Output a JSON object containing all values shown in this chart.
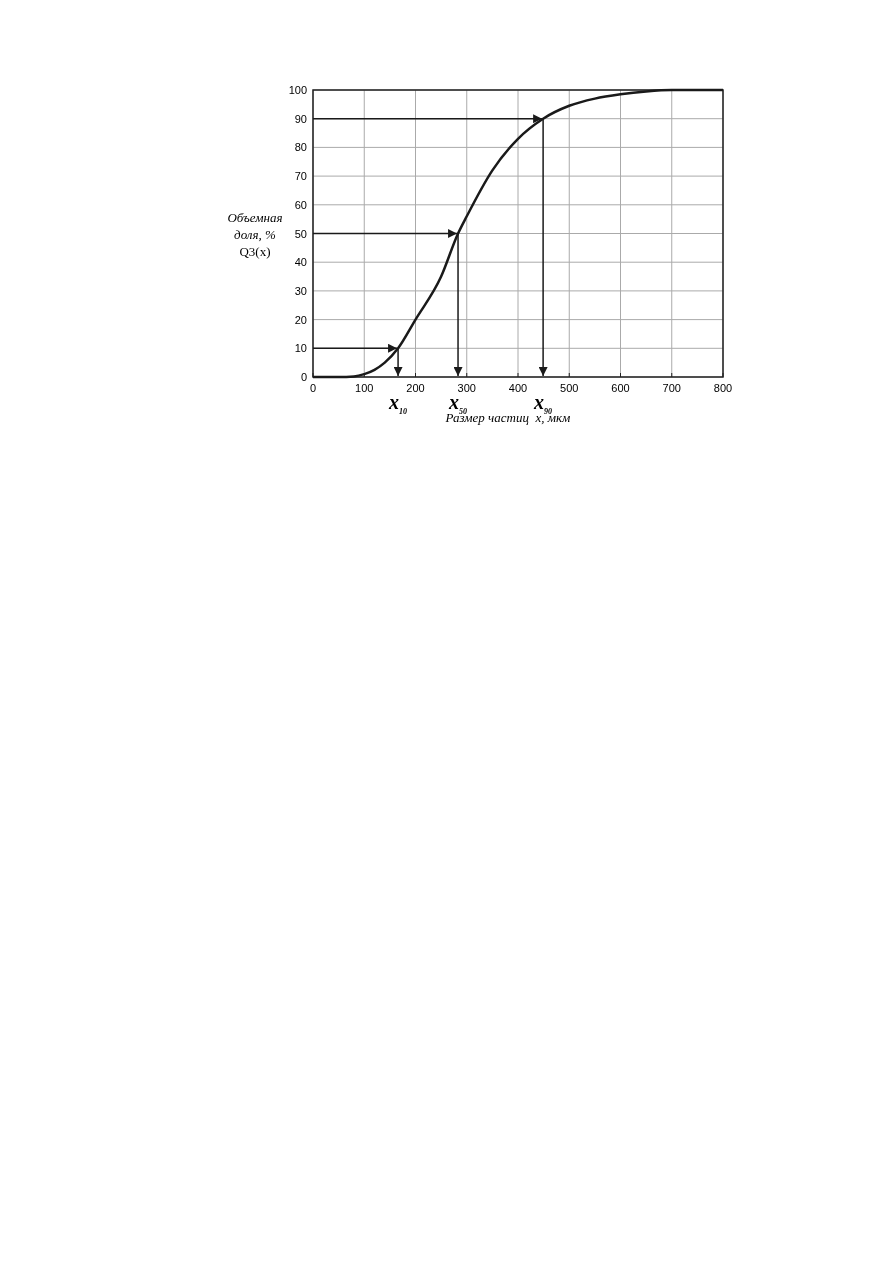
{
  "chart_data": {
    "type": "line",
    "xlabel": "Размер частиц  x, мкм",
    "ylabel": "Объемная\nдоля, %\nQ3(x)",
    "x": [
      0,
      50,
      80,
      100,
      120,
      140,
      166,
      200,
      250,
      283,
      300,
      350,
      400,
      449,
      500,
      550,
      600,
      650,
      700,
      800
    ],
    "series": [
      {
        "color": "#1a1a1a",
        "values": [
          0,
          0,
          0.2,
          1,
          2.5,
          5,
          10,
          20,
          35,
          50,
          56,
          72,
          83,
          90,
          94.5,
          97,
          98.5,
          99.5,
          100,
          100
        ]
      }
    ],
    "xlim": [
      0,
      800
    ],
    "xticks": [
      0,
      100,
      200,
      300,
      400,
      500,
      600,
      700,
      800
    ],
    "ylim": [
      0,
      100
    ],
    "yticks": [
      0,
      10,
      20,
      30,
      40,
      50,
      60,
      70,
      80,
      90,
      100
    ],
    "grid": true,
    "marker": "none",
    "line_style": "solid",
    "annotations": [
      {
        "text": "x$_{10}$",
        "x": 166,
        "y": 10
      },
      {
        "text": "x$_{50}$",
        "x": 283,
        "y": 50
      },
      {
        "text": "x$_{90}$",
        "x": 449,
        "y": 90
      }
    ]
  }
}
